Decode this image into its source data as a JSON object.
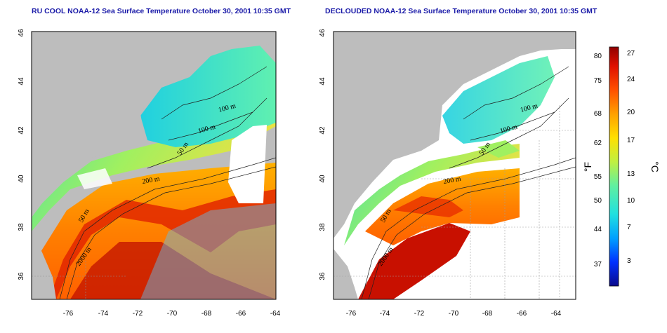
{
  "panels": [
    {
      "id": "left",
      "title": "RU COOL NOAA-12 Sea Surface Temperature October 30, 2001 10:35 GMT",
      "x_ticks": [
        "-76",
        "-74",
        "-72",
        "-70",
        "-68",
        "-66",
        "-64"
      ],
      "y_ticks": [
        "46",
        "44",
        "42",
        "40",
        "38",
        "36"
      ],
      "contour_labels": [
        "100 m",
        "100 m",
        "50 m",
        "200 m",
        "50 m",
        "2000 m"
      ]
    },
    {
      "id": "right",
      "title": "DECLOUDED NOAA-12 Sea Surface Temperature October 30, 2001 10:35 GMT",
      "x_ticks": [
        "-76",
        "-74",
        "-72",
        "-70",
        "-68",
        "-66",
        "-64"
      ],
      "y_ticks": [
        "46",
        "44",
        "42",
        "40",
        "38",
        "36"
      ],
      "contour_labels": [
        "100 m",
        "100 m",
        "50 m",
        "200 m",
        "50 m",
        "2000 m"
      ]
    }
  ],
  "colorbar": {
    "fahrenheit_label": "°F",
    "celsius_label": "°C",
    "fahrenheit_ticks": [
      "80",
      "75",
      "68",
      "62",
      "55",
      "50",
      "44",
      "37"
    ],
    "celsius_ticks": [
      "27",
      "24",
      "20",
      "17",
      "13",
      "10",
      "7",
      "3"
    ],
    "colors": [
      "#0a0a8c",
      "#0030ff",
      "#00a0ff",
      "#20e0e0",
      "#60f0a0",
      "#c0f040",
      "#ffe000",
      "#ffa000",
      "#ff5000",
      "#e01000",
      "#900000"
    ]
  },
  "colors": {
    "land": "#bdbdbd",
    "cloud": "#ffffff",
    "title": "#1a1aa8"
  }
}
